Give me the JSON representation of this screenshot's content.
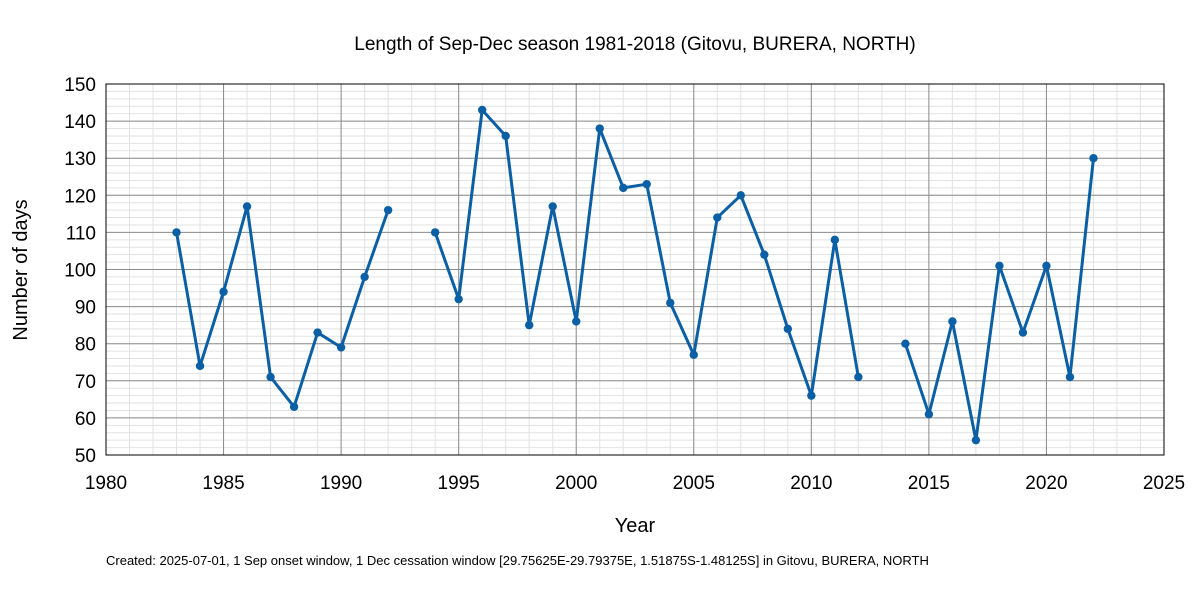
{
  "chart_data": {
    "type": "line",
    "title": "Length of Sep-Dec season 1981-2018 (Gitovu, BURERA, NORTH)",
    "xlabel": "Year",
    "ylabel": "Number of days",
    "xlim": [
      1980,
      2025
    ],
    "ylim": [
      50,
      150
    ],
    "x_ticks": [
      1980,
      1985,
      1990,
      1995,
      2000,
      2005,
      2010,
      2015,
      2020,
      2025
    ],
    "y_ticks": [
      50,
      60,
      70,
      80,
      90,
      100,
      110,
      120,
      130,
      140,
      150
    ],
    "grid": true,
    "line_color": "#0b5fa5",
    "series": [
      {
        "x": [
          1983,
          1984,
          1985,
          1986,
          1987,
          1988,
          1989,
          1990,
          1991,
          1992,
          1993,
          1994,
          1995,
          1996,
          1997,
          1998,
          1999,
          2000,
          2001,
          2002,
          2003,
          2004,
          2005,
          2006,
          2007,
          2008,
          2009,
          2010,
          2011,
          2012,
          2013,
          2014,
          2015,
          2016,
          2017,
          2018,
          2019,
          2020,
          2021,
          2022
        ],
        "values": [
          110,
          74,
          94,
          117,
          71,
          63,
          83,
          79,
          98,
          116,
          null,
          110,
          92,
          143,
          136,
          85,
          117,
          86,
          138,
          122,
          123,
          91,
          77,
          114,
          120,
          104,
          84,
          66,
          108,
          71,
          null,
          80,
          61,
          86,
          54,
          101,
          83,
          101,
          71,
          130
        ]
      }
    ]
  },
  "caption": "Created: 2025-07-01, 1 Sep onset window, 1 Dec cessation window [29.75625E-29.79375E, 1.51875S-1.48125S] in Gitovu, BURERA, NORTH"
}
